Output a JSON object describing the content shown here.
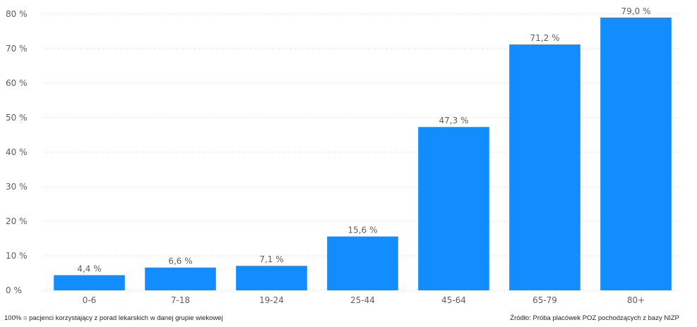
{
  "chart_data": {
    "type": "bar",
    "categories": [
      "0-6",
      "7-18",
      "19-24",
      "25-44",
      "45-64",
      "65-79",
      "80+"
    ],
    "values": [
      4.4,
      6.6,
      7.1,
      15.6,
      47.3,
      71.2,
      79.0
    ],
    "value_labels": [
      "4,4 %",
      "6,6 %",
      "7,1 %",
      "15,6 %",
      "47,3 %",
      "71,2 %",
      "79,0 %"
    ],
    "yticks": [
      0,
      10,
      20,
      30,
      40,
      50,
      60,
      70,
      80
    ],
    "ytick_labels": [
      "0 %",
      "10 %",
      "20 %",
      "30 %",
      "40 %",
      "50 %",
      "60 %",
      "70 %",
      "80 %"
    ],
    "ylim": [
      0,
      80
    ],
    "grid": true,
    "bar_color": "#118DFF",
    "title": "",
    "xlabel": "",
    "ylabel": ""
  },
  "footer": {
    "note": "100% = pacjenci korzystający z porad lekarskich w danej grupie wiekowej",
    "source": "Źródło: Próba placówek POZ pochodzących z bazy NIZP"
  }
}
